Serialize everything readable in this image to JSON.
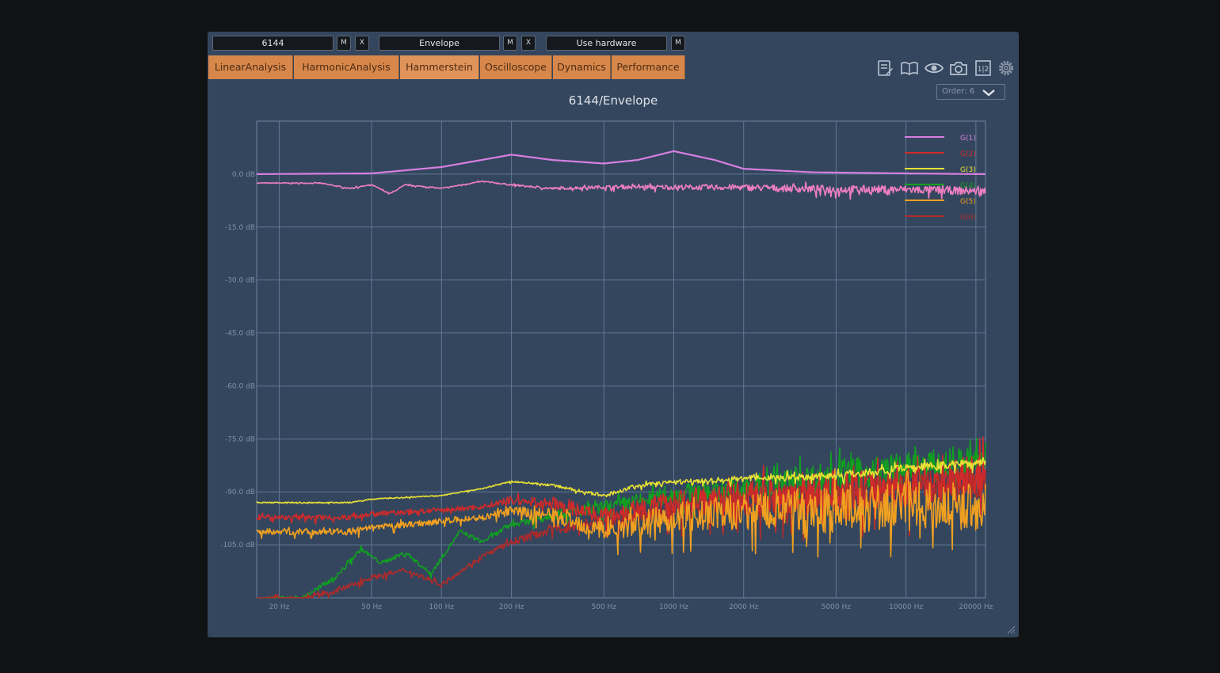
{
  "toolbar": {
    "field1": "6144",
    "field2": "Envelope",
    "field3": "Use hardware",
    "m_label": "M",
    "x_label": "X"
  },
  "tabs": [
    {
      "label": "LinearAnalysis"
    },
    {
      "label": "HarmonicAnalysis"
    },
    {
      "label": "Hammerstein"
    },
    {
      "label": "Oscilloscope"
    },
    {
      "label": "Dynamics"
    },
    {
      "label": "Performance"
    }
  ],
  "icons": [
    "notes-icon",
    "book-icon",
    "eye-icon",
    "camera-icon",
    "split-view-icon",
    "gear-icon"
  ],
  "order_select": {
    "value": "Order: 6"
  },
  "colors": {
    "background": "#34465e",
    "tab": "#d7874a",
    "g1": "#d77fe0",
    "g2": "#d02a2a",
    "g3": "#e8e034",
    "g4": "#10a020",
    "g5": "#f0a020",
    "g6": "#b02a2a",
    "envelope": "#ef7fc0"
  },
  "chart_data": {
    "type": "line",
    "title": "6144/Envelope",
    "xscale": "log",
    "xlim": [
      16,
      22000
    ],
    "ylim": [
      -120,
      15
    ],
    "x_ticks": [
      {
        "value": 20,
        "label": "20 Hz"
      },
      {
        "value": 50,
        "label": "50 Hz"
      },
      {
        "value": 100,
        "label": "100 Hz"
      },
      {
        "value": 200,
        "label": "200 Hz"
      },
      {
        "value": 500,
        "label": "500 Hz"
      },
      {
        "value": 1000,
        "label": "1000 Hz"
      },
      {
        "value": 2000,
        "label": "2000 Hz"
      },
      {
        "value": 5000,
        "label": "5000 Hz"
      },
      {
        "value": 10000,
        "label": "10000 Hz"
      },
      {
        "value": 20000,
        "label": "20000 Hz"
      }
    ],
    "y_ticks": [
      {
        "value": 0,
        "label": "0.0 dB"
      },
      {
        "value": -15,
        "label": "-15.0 dB"
      },
      {
        "value": -30,
        "label": "-30.0 dB"
      },
      {
        "value": -45,
        "label": "-45.0 dB"
      },
      {
        "value": -60,
        "label": "-60.0 dB"
      },
      {
        "value": -75,
        "label": "-75.0 dB"
      },
      {
        "value": -90,
        "label": "-90.0 dB"
      },
      {
        "value": -105,
        "label": "-105.0 dB"
      }
    ],
    "grid": true,
    "legend_position": "top-right",
    "legend": [
      {
        "label": "G(1)",
        "color": "#d77fe0"
      },
      {
        "label": "G(2)",
        "color": "#d02a2a"
      },
      {
        "label": "G(3)",
        "color": "#e8e034"
      },
      {
        "label": "G(4)",
        "color": "#10a020"
      },
      {
        "label": "G(5)",
        "color": "#f0a020"
      },
      {
        "label": "G(6)",
        "color": "#b02a2a"
      }
    ],
    "series": [
      {
        "name": "G(1)",
        "color": "#d77fe0",
        "noise": 0,
        "x": [
          16,
          50,
          100,
          200,
          300,
          500,
          700,
          1000,
          1500,
          2000,
          4000,
          10000,
          20000,
          22000
        ],
        "y": [
          0,
          0.2,
          2,
          5.5,
          4,
          3,
          4,
          6.5,
          4,
          1.5,
          0.5,
          0.2,
          0,
          0
        ]
      },
      {
        "name": "G(1) envelope",
        "color": "#ef7fc0",
        "noise": 2,
        "x": [
          16,
          30,
          40,
          50,
          60,
          70,
          100,
          150,
          200,
          300,
          500,
          1000,
          2000,
          5000,
          10000,
          22000
        ],
        "y": [
          -2.5,
          -2.5,
          -4,
          -3,
          -5.5,
          -3,
          -4,
          -2,
          -3,
          -4,
          -3.5,
          -3.5,
          -3.5,
          -4,
          -4,
          -4.5
        ]
      },
      {
        "name": "G(3)",
        "color": "#e8e034",
        "noise": 2,
        "x": [
          16,
          40,
          50,
          100,
          150,
          200,
          300,
          500,
          700,
          1000,
          2000,
          5000,
          10000,
          22000
        ],
        "y": [
          -93,
          -93,
          -92,
          -91,
          -89,
          -87,
          -88,
          -91,
          -88,
          -87,
          -86,
          -85,
          -83,
          -81
        ]
      },
      {
        "name": "G(2)",
        "color": "#d02a2a",
        "noise": 10,
        "x": [
          16,
          40,
          50,
          100,
          150,
          200,
          300,
          500,
          700,
          1000,
          2000,
          5000,
          10000,
          22000
        ],
        "y": [
          -97,
          -97,
          -96,
          -95,
          -94,
          -92,
          -93,
          -96,
          -94,
          -92,
          -90,
          -88,
          -87,
          -83
        ]
      },
      {
        "name": "G(4)",
        "color": "#10a020",
        "noise": 8,
        "x": [
          16,
          25,
          35,
          45,
          55,
          70,
          90,
          120,
          150,
          200,
          300,
          500,
          1000,
          2000,
          5000,
          10000,
          22000
        ],
        "y": [
          -120,
          -120,
          -114,
          -106,
          -110,
          -107,
          -113,
          -101,
          -104,
          -99,
          -96,
          -94,
          -90,
          -88,
          -84,
          -82,
          -80
        ]
      },
      {
        "name": "G(5)",
        "color": "#f0a020",
        "noise": 12,
        "x": [
          16,
          40,
          50,
          100,
          150,
          200,
          300,
          500,
          700,
          1000,
          2000,
          5000,
          10000,
          22000
        ],
        "y": [
          -101,
          -101,
          -100,
          -98,
          -97,
          -95,
          -96,
          -100,
          -98,
          -96,
          -94,
          -93,
          -92,
          -92
        ]
      },
      {
        "name": "G(6)",
        "color": "#b02a2a",
        "noise": 9,
        "x": [
          16,
          25,
          35,
          50,
          70,
          100,
          150,
          200,
          300,
          500,
          1000,
          2000,
          5000,
          10000,
          22000
        ],
        "y": [
          -120,
          -120,
          -118,
          -114,
          -112,
          -116,
          -108,
          -104,
          -100,
          -98,
          -94,
          -92,
          -90,
          -88,
          -86
        ]
      }
    ]
  }
}
